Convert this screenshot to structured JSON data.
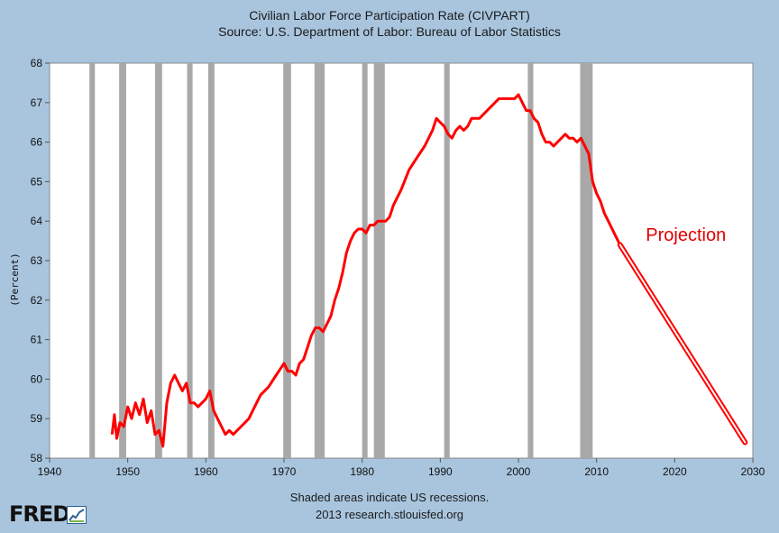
{
  "header": {
    "title": "Civilian Labor Force Participation Rate (CIVPART)",
    "subtitle": "Source: U.S. Department of Labor: Bureau of Labor Statistics"
  },
  "footer": {
    "line1": "Shaded areas indicate US recessions.",
    "line2": "2013 research.stlouisfed.org"
  },
  "logo": {
    "text": "FRED",
    "icon": "fred-chart-icon"
  },
  "colors": {
    "background": "#a9c5de",
    "plot_bg": "#ffffff",
    "series": "#ff0000",
    "recession": "#a8a8a8",
    "annotation": "#e00000"
  },
  "chart_data": {
    "type": "line",
    "title": "Civilian Labor Force Participation Rate (CIVPART)",
    "subtitle": "Source: U.S. Department of Labor: Bureau of Labor Statistics",
    "xlabel": "",
    "ylabel": "(Percent)",
    "xlim": [
      1940,
      2030
    ],
    "ylim": [
      58,
      68
    ],
    "xticks": [
      1940,
      1950,
      1960,
      1970,
      1980,
      1990,
      2000,
      2010,
      2020,
      2030
    ],
    "yticks": [
      58,
      59,
      60,
      61,
      62,
      63,
      64,
      65,
      66,
      67,
      68
    ],
    "grid": false,
    "recessions": [
      [
        1945.1,
        1945.8
      ],
      [
        1948.9,
        1949.8
      ],
      [
        1953.5,
        1954.4
      ],
      [
        1957.6,
        1958.3
      ],
      [
        1960.3,
        1961.1
      ],
      [
        1969.9,
        1970.9
      ],
      [
        1973.9,
        1975.2
      ],
      [
        1980.0,
        1980.5
      ],
      [
        1981.5,
        1982.9
      ],
      [
        1990.5,
        1991.2
      ],
      [
        2001.2,
        2001.9
      ],
      [
        2007.9,
        2009.5
      ]
    ],
    "series": [
      {
        "x": [
          1948.0,
          1948.3,
          1948.6,
          1949.0,
          1949.5,
          1950.0,
          1950.5,
          1951.0,
          1951.5,
          1952.0,
          1952.5,
          1953.0,
          1953.5,
          1954.0,
          1954.5,
          1955.0,
          1955.5,
          1956.0,
          1956.5,
          1957.0,
          1957.5,
          1958.0,
          1958.5,
          1959.0,
          1959.5,
          1960.0,
          1960.5,
          1961.0,
          1961.5,
          1962.0,
          1962.5,
          1963.0,
          1963.5,
          1964.0,
          1964.5,
          1965.0,
          1965.5,
          1966.0,
          1967.0,
          1968.0,
          1969.0,
          1970.0,
          1970.5,
          1971.0,
          1971.5,
          1972.0,
          1972.5,
          1973.0,
          1973.5,
          1974.0,
          1974.5,
          1975.0,
          1975.5,
          1976.0,
          1976.5,
          1977.0,
          1977.5,
          1978.0,
          1978.5,
          1979.0,
          1979.5,
          1980.0,
          1980.5,
          1981.0,
          1981.5,
          1982.0,
          1982.5,
          1983.0,
          1983.5,
          1984.0,
          1985.0,
          1986.0,
          1987.0,
          1988.0,
          1989.0,
          1989.5,
          1990.0,
          1990.5,
          1991.0,
          1991.5,
          1992.0,
          1992.5,
          1993.0,
          1993.5,
          1994.0,
          1995.0,
          1996.0,
          1996.5,
          1997.0,
          1997.5,
          1998.0,
          1998.5,
          1999.0,
          1999.5,
          2000.0,
          2000.5,
          2001.0,
          2001.5,
          2002.0,
          2002.5,
          2003.0,
          2003.5,
          2004.0,
          2004.5,
          2005.0,
          2005.5,
          2006.0,
          2006.5,
          2007.0,
          2007.5,
          2008.0,
          2008.5,
          2009.0,
          2009.5,
          2010.0,
          2010.5,
          2011.0,
          2011.5,
          2012.0,
          2012.5,
          2013.0
        ],
        "values": [
          58.6,
          59.1,
          58.5,
          58.9,
          58.8,
          59.3,
          59.0,
          59.4,
          59.1,
          59.5,
          58.9,
          59.2,
          58.6,
          58.7,
          58.3,
          59.4,
          59.9,
          60.1,
          59.9,
          59.7,
          59.9,
          59.4,
          59.4,
          59.3,
          59.4,
          59.5,
          59.7,
          59.2,
          59.0,
          58.8,
          58.6,
          58.7,
          58.6,
          58.7,
          58.8,
          58.9,
          59.0,
          59.2,
          59.6,
          59.8,
          60.1,
          60.4,
          60.2,
          60.2,
          60.1,
          60.4,
          60.5,
          60.8,
          61.1,
          61.3,
          61.3,
          61.2,
          61.4,
          61.6,
          62.0,
          62.3,
          62.7,
          63.2,
          63.5,
          63.7,
          63.8,
          63.8,
          63.7,
          63.9,
          63.9,
          64.0,
          64.0,
          64.0,
          64.1,
          64.4,
          64.8,
          65.3,
          65.6,
          65.9,
          66.3,
          66.6,
          66.5,
          66.4,
          66.2,
          66.1,
          66.3,
          66.4,
          66.3,
          66.4,
          66.6,
          66.6,
          66.8,
          66.9,
          67.0,
          67.1,
          67.1,
          67.1,
          67.1,
          67.1,
          67.2,
          67.0,
          66.8,
          66.8,
          66.6,
          66.5,
          66.2,
          66.0,
          66.0,
          65.9,
          66.0,
          66.1,
          66.2,
          66.1,
          66.1,
          66.0,
          66.1,
          65.9,
          65.7,
          65.0,
          64.7,
          64.5,
          64.2,
          64.0,
          63.8,
          63.6,
          63.4
        ]
      },
      {
        "x": [
          2013.0,
          2029.0
        ],
        "values": [
          63.4,
          58.4
        ],
        "style": "double-line projection"
      }
    ],
    "annotations": [
      {
        "text": "Projection",
        "x": 2016.3,
        "y": 63.5
      }
    ]
  }
}
